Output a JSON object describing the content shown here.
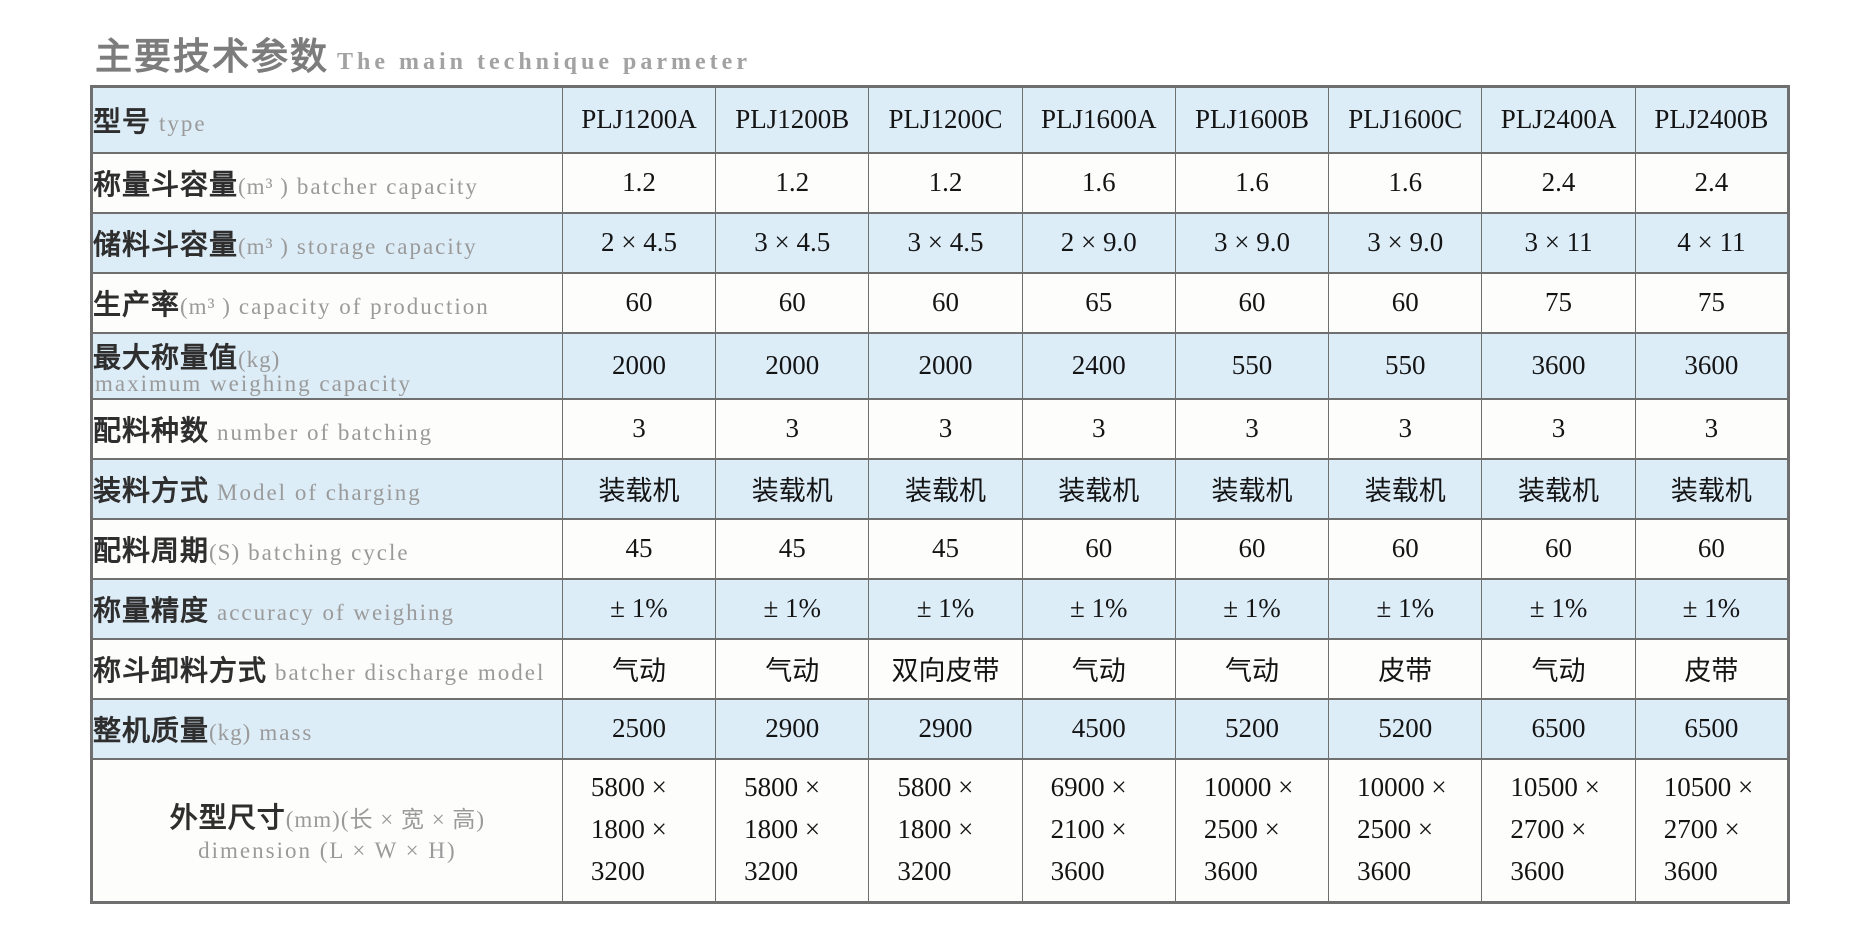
{
  "page": {
    "title_zh": "主要技术参数",
    "title_en": "The main technique parmeter"
  },
  "colors": {
    "row_highlight": "#ddedf8",
    "border": "#6f6f6f",
    "label_secondary": "#9a9a9a"
  },
  "table": {
    "header": {
      "zh": "型号",
      "en": "type",
      "models": [
        "PLJ1200A",
        "PLJ1200B",
        "PLJ1200C",
        "PLJ1600A",
        "PLJ1600B",
        "PLJ1600C",
        "PLJ2400A",
        "PLJ2400B"
      ]
    },
    "rows": [
      {
        "zh": "称量斗容量",
        "unit": "(m³ )",
        "en": "batcher capacity",
        "values": [
          "1.2",
          "1.2",
          "1.2",
          "1.6",
          "1.6",
          "1.6",
          "2.4",
          "2.4"
        ]
      },
      {
        "zh": "储料斗容量",
        "unit": "(m³ )",
        "en": "storage capacity",
        "values": [
          "2 × 4.5",
          "3 × 4.5",
          "3 × 4.5",
          "2 × 9.0",
          "3 × 9.0",
          "3 × 9.0",
          "3 × 11",
          "4 × 11"
        ]
      },
      {
        "zh": "生产率",
        "unit": "(m³ )",
        "en": "capacity of production",
        "values": [
          "60",
          "60",
          "60",
          "65",
          "60",
          "60",
          "75",
          "75"
        ]
      },
      {
        "zh": "最大称量值",
        "unit": "(kg)",
        "en": "maximum weighing capacity",
        "values": [
          "2000",
          "2000",
          "2000",
          "2400",
          "550",
          "550",
          "3600",
          "3600"
        ]
      },
      {
        "zh": "配料种数",
        "unit": "",
        "en": "number of batching",
        "values": [
          "3",
          "3",
          "3",
          "3",
          "3",
          "3",
          "3",
          "3"
        ]
      },
      {
        "zh": "装料方式",
        "unit": "",
        "en": "Model of charging",
        "values": [
          "装载机",
          "装载机",
          "装载机",
          "装载机",
          "装载机",
          "装载机",
          "装载机",
          "装载机"
        ]
      },
      {
        "zh": "配料周期",
        "unit": "(S)",
        "en": "batching cycle",
        "values": [
          "45",
          "45",
          "45",
          "60",
          "60",
          "60",
          "60",
          "60"
        ]
      },
      {
        "zh": "称量精度",
        "unit": "",
        "en": "accuracy of weighing",
        "values": [
          "± 1%",
          "± 1%",
          "± 1%",
          "± 1%",
          "± 1%",
          "± 1%",
          "± 1%",
          "± 1%"
        ]
      },
      {
        "zh": "称斗卸料方式",
        "unit": "",
        "en": "batcher discharge model",
        "values": [
          "气动",
          "气动",
          "双向皮带",
          "气动",
          "气动",
          "皮带",
          "气动",
          "皮带"
        ]
      },
      {
        "zh": "整机质量",
        "unit": "(kg)",
        "en": "mass",
        "values": [
          "2500",
          "2900",
          "2900",
          "4500",
          "5200",
          "5200",
          "6500",
          "6500"
        ]
      },
      {
        "zh": "外型尺寸",
        "unit": "(mm)(长 × 宽 × 高)",
        "en": "dimension (L × W × H)",
        "values": [
          "5800 ×\n1800 ×\n3200",
          "5800 ×\n1800 ×\n3200",
          "5800 ×\n1800 ×\n3200",
          "6900 ×\n2100 ×\n3600",
          "10000 ×\n2500 ×\n3600",
          "10000 ×\n2500 ×\n3600",
          "10500 ×\n2700 ×\n3600",
          "10500 ×\n2700 ×\n3600"
        ]
      }
    ]
  }
}
